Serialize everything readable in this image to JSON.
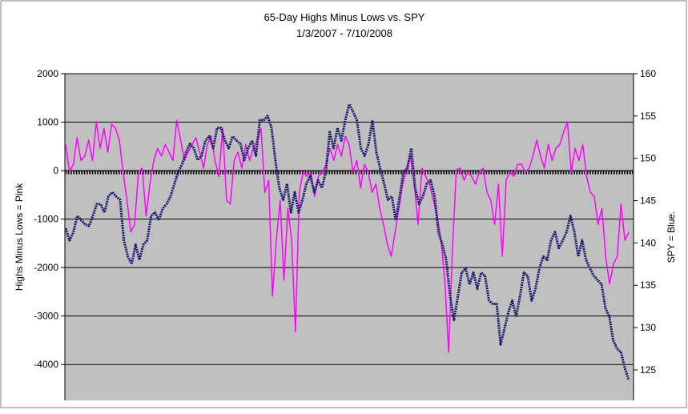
{
  "chart_data": {
    "type": "line",
    "title": "65-Day Highs Minus Lows vs. SPY",
    "subtitle": "1/3/2007  - 7/10/2008",
    "y_label": "Highs Minus Lows = Pink",
    "y2_label": "SPY = Blue.",
    "ylim": [
      -4740,
      2000
    ],
    "yticks": [
      2000,
      1000,
      0,
      -1000,
      -2000,
      -3000,
      -4000
    ],
    "y2lim": [
      121.4,
      160
    ],
    "y2ticks": [
      160,
      155,
      150,
      145,
      140,
      135,
      130,
      125
    ],
    "grid": true,
    "series": [
      {
        "name": "Highs Minus Lows",
        "color": "#ff00ff",
        "axis": "y",
        "values": [
          540,
          -20,
          130,
          680,
          210,
          300,
          630,
          210,
          1010,
          460,
          870,
          380,
          960,
          870,
          630,
          -30,
          -610,
          -1270,
          -1110,
          -30,
          50,
          -940,
          -280,
          210,
          460,
          300,
          540,
          380,
          210,
          1040,
          630,
          210,
          380,
          540,
          680,
          380,
          50,
          540,
          710,
          210,
          -120,
          870,
          -610,
          -690,
          210,
          380,
          50,
          540,
          210,
          460,
          630,
          870,
          -450,
          -200,
          -2590,
          -1440,
          -610,
          -2260,
          -780,
          -1440,
          -3330,
          -450,
          -30,
          -120,
          -30,
          -530,
          -120,
          -30,
          130,
          460,
          210,
          540,
          300,
          710,
          540,
          -30,
          210,
          -360,
          130,
          -30,
          -450,
          -280,
          -780,
          -1110,
          -1520,
          -1770,
          -1270,
          -780,
          -280,
          50,
          300,
          -280,
          -1110,
          50,
          -120,
          -280,
          -610,
          -940,
          -1440,
          -2260,
          -3750,
          -1600,
          20,
          50,
          -200,
          -30,
          -120,
          -280,
          -30,
          50,
          -450,
          -610,
          -1110,
          -280,
          -1770,
          -200,
          -30,
          -120,
          130,
          130,
          -30,
          50,
          300,
          630,
          300,
          50,
          540,
          210,
          460,
          540,
          790,
          1010,
          -30,
          460,
          210,
          540,
          -120,
          -450,
          -530,
          -1110,
          -780,
          -1770,
          -2340,
          -1930,
          -1770,
          -690,
          -1440,
          -1270
        ]
      },
      {
        "name": "SPY",
        "color": "#1c1c6e",
        "axis": "y2",
        "values": [
          141.7,
          140.3,
          141.3,
          143.2,
          142.7,
          142.2,
          142.0,
          143.2,
          144.6,
          144.6,
          143.6,
          145.5,
          146.0,
          145.5,
          145.1,
          140.3,
          138.4,
          137.5,
          139.8,
          138.0,
          139.8,
          140.3,
          143.2,
          143.6,
          142.7,
          144.1,
          144.6,
          145.5,
          147.0,
          148.4,
          149.3,
          150.7,
          151.7,
          151.2,
          149.8,
          150.3,
          152.1,
          152.6,
          151.2,
          153.6,
          153.6,
          152.1,
          151.2,
          152.6,
          152.1,
          151.7,
          149.8,
          151.2,
          152.1,
          150.3,
          154.5,
          154.5,
          155.0,
          153.6,
          149.8,
          146.5,
          145.1,
          147.0,
          143.6,
          146.0,
          143.6,
          145.1,
          147.0,
          147.9,
          146.0,
          147.4,
          146.5,
          148.4,
          153.1,
          151.2,
          153.6,
          152.1,
          154.5,
          156.4,
          155.5,
          154.5,
          151.2,
          150.3,
          151.7,
          154.5,
          150.7,
          148.8,
          147.0,
          145.1,
          145.5,
          142.7,
          145.5,
          148.4,
          148.8,
          151.2,
          146.5,
          144.6,
          145.5,
          147.0,
          147.4,
          145.5,
          141.3,
          139.8,
          138.0,
          133.7,
          130.9,
          133.7,
          136.5,
          137.0,
          135.1,
          136.5,
          134.6,
          136.5,
          136.1,
          133.2,
          132.8,
          132.8,
          128.0,
          129.9,
          131.8,
          133.2,
          131.3,
          133.7,
          136.5,
          136.1,
          133.2,
          134.6,
          137.0,
          138.4,
          138.0,
          140.3,
          141.3,
          139.4,
          140.3,
          141.3,
          143.2,
          141.3,
          138.4,
          140.3,
          138.0,
          137.0,
          136.1,
          135.6,
          135.1,
          132.3,
          131.3,
          128.5,
          127.5,
          127.1,
          125.2,
          123.8
        ]
      }
    ]
  }
}
